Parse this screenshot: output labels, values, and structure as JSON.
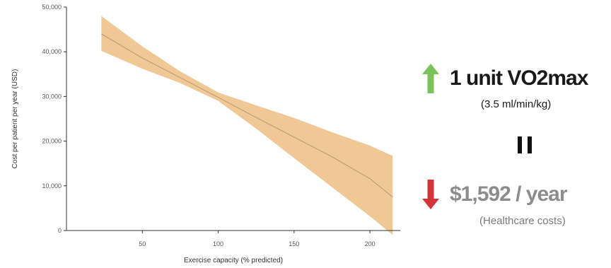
{
  "chart_data": {
    "type": "line",
    "xlabel": "Exercise capacity (% predicted)",
    "ylabel": "Cost per patient per year (USD)",
    "xlim": [
      0,
      220
    ],
    "ylim": [
      0,
      50000
    ],
    "x_ticks": [
      50,
      100,
      150,
      200
    ],
    "y_ticks": [
      0,
      10000,
      20000,
      30000,
      40000,
      50000
    ],
    "y_tick_labels": [
      "0",
      "10,000",
      "20,000",
      "30,000",
      "40,000",
      "50,000"
    ],
    "grid": false,
    "series": [
      {
        "x": [
          23,
          50,
          75,
          100,
          125,
          150,
          175,
          200,
          215
        ],
        "y": [
          44000,
          38600,
          34200,
          29800,
          25300,
          20900,
          16500,
          11600,
          7500
        ],
        "y_lower": [
          40200,
          36200,
          33000,
          29000,
          22800,
          16200,
          9700,
          3200,
          -1000
        ],
        "y_upper": [
          48000,
          41200,
          35600,
          30900,
          28000,
          25200,
          22000,
          19000,
          16700
        ],
        "color": "#b8997a",
        "band_color": "#efc895"
      }
    ]
  },
  "panel": {
    "headline_top": "1 unit VO2max",
    "sub_top": "(3.5 ml/min/kg)",
    "headline_bottom": "$1,592 / year",
    "sub_bottom": "(Healthcare costs)",
    "up_arrow_icon": "green-up-arrow",
    "down_arrow_icon": "red-down-arrow",
    "equals_icon": "equals-sign",
    "color_up": "#7cc25a",
    "color_down": "#d2343a",
    "color_top_text": "#1a1a1a",
    "color_bottom_headline": "#8c8c8c",
    "color_bottom_sub": "#7a7a7a"
  }
}
